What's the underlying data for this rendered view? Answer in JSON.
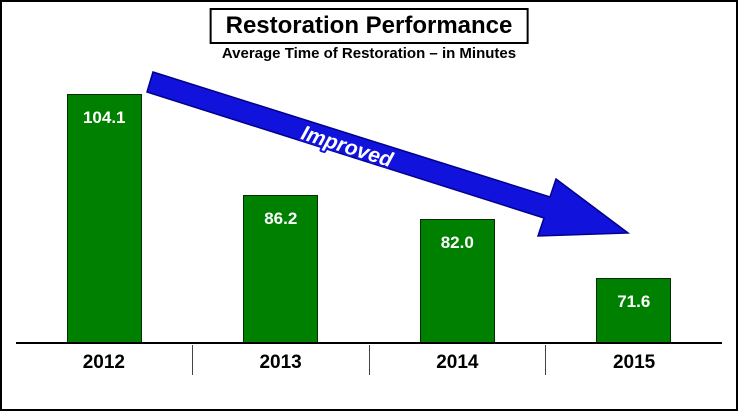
{
  "chart_data": {
    "type": "bar",
    "title": "Restoration Performance",
    "subtitle": "Average Time of Restoration – in Minutes",
    "categories": [
      "2012",
      "2013",
      "2014",
      "2015"
    ],
    "values": [
      104.1,
      86.2,
      82.0,
      71.6
    ],
    "value_labels": [
      "104.1",
      "86.2",
      "82.0",
      "71.6"
    ],
    "ylim": [
      60,
      110
    ],
    "grid": false,
    "legend": "none",
    "annotation": {
      "text": "Improved",
      "text_color": "#ffffff",
      "arrow_color": "#1212dd",
      "arrow_outline": "#00008b"
    },
    "colors": {
      "bar_fill": "#008000",
      "bar_border": "#012f01",
      "value_text": "#ffffff",
      "axis_line": "#000000",
      "title_text": "#000000"
    }
  }
}
